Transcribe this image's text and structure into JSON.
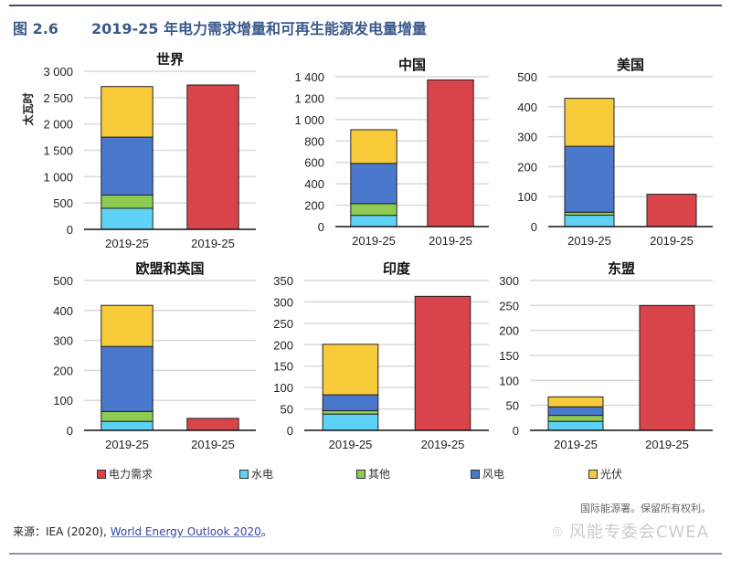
{
  "header": {
    "figure_number": "图 2.6",
    "title": "2019-25 年电力需求增量和可再生能源发电量增量"
  },
  "colors": {
    "demand": "#d9444a",
    "hydro": "#5fd3f7",
    "other": "#8ecb52",
    "wind": "#4a78cd",
    "solar": "#f8cb3b",
    "title": "#3a5a8c"
  },
  "chart_data": [
    {
      "type": "bar",
      "title": "世界",
      "ylabel": "太瓦时",
      "ylim": [
        0,
        3000
      ],
      "yticks": [
        0,
        500,
        1000,
        1500,
        2000,
        2500,
        3000
      ],
      "ytick_labels": [
        "0",
        "500",
        "1 000",
        "1 500",
        "2 000",
        "2 500",
        "3 000"
      ],
      "categories": [
        "2019-25",
        "2019-25"
      ],
      "stacked": {
        "水电": 400,
        "其他": 250,
        "风电": 1100,
        "光伏": 960
      },
      "demand": 2740
    },
    {
      "type": "bar",
      "title": "中国",
      "ylim": [
        0,
        1400
      ],
      "yticks": [
        0,
        200,
        400,
        600,
        800,
        1000,
        1200,
        1400
      ],
      "ytick_labels": [
        "0",
        "200",
        "400",
        "600",
        "800",
        "1 000",
        "1 200",
        "1 400"
      ],
      "categories": [
        "2019-25",
        "2019-25"
      ],
      "stacked": {
        "水电": 105,
        "其他": 110,
        "风电": 375,
        "光伏": 315
      },
      "demand": 1370
    },
    {
      "type": "bar",
      "title": "美国",
      "ylim": [
        0,
        500
      ],
      "yticks": [
        0,
        100,
        200,
        300,
        400,
        500
      ],
      "ytick_labels": [
        "0",
        "100",
        "200",
        "300",
        "400",
        "500"
      ],
      "categories": [
        "2019-25",
        "2019-25"
      ],
      "stacked": {
        "水电": 38,
        "其他": 10,
        "风电": 220,
        "光伏": 160
      },
      "demand": 108
    },
    {
      "type": "bar",
      "title": "欧盟和英国",
      "ylim": [
        0,
        500
      ],
      "yticks": [
        0,
        100,
        200,
        300,
        400,
        500
      ],
      "ytick_labels": [
        "0",
        "100",
        "200",
        "300",
        "400",
        "500"
      ],
      "categories": [
        "2019-25",
        "2019-25"
      ],
      "stacked": {
        "水电": 30,
        "其他": 33,
        "风电": 217,
        "光伏": 137
      },
      "demand": 40
    },
    {
      "type": "bar",
      "title": "印度",
      "ylim": [
        0,
        350
      ],
      "yticks": [
        0,
        50,
        100,
        150,
        200,
        250,
        300,
        350
      ],
      "ytick_labels": [
        "0",
        "50",
        "100",
        "150",
        "200",
        "250",
        "300",
        "350"
      ],
      "categories": [
        "2019-25",
        "2019-25"
      ],
      "stacked": {
        "水电": 38,
        "其他": 8,
        "风电": 37,
        "光伏": 118
      },
      "demand": 313
    },
    {
      "type": "bar",
      "title": "东盟",
      "ylim": [
        0,
        300
      ],
      "yticks": [
        0,
        50,
        100,
        150,
        200,
        250,
        300
      ],
      "ytick_labels": [
        "0",
        "50",
        "100",
        "150",
        "200",
        "250",
        "300"
      ],
      "categories": [
        "2019-25",
        "2019-25"
      ],
      "stacked": {
        "水电": 18,
        "其他": 12,
        "风电": 17,
        "光伏": 20
      },
      "demand": 250
    }
  ],
  "legend": [
    {
      "key": "demand",
      "label": "电力需求"
    },
    {
      "key": "hydro",
      "label": "水电"
    },
    {
      "key": "other",
      "label": "其他"
    },
    {
      "key": "wind",
      "label": "风电"
    },
    {
      "key": "solar",
      "label": "光伏"
    }
  ],
  "footer": {
    "rights": "国际能源署。保留所有权利。",
    "watermark": "风能专委会CWEA",
    "source_prefix": "来源：IEA (2020), ",
    "source_link": "World Energy Outlook 2020",
    "source_suffix": "。"
  }
}
